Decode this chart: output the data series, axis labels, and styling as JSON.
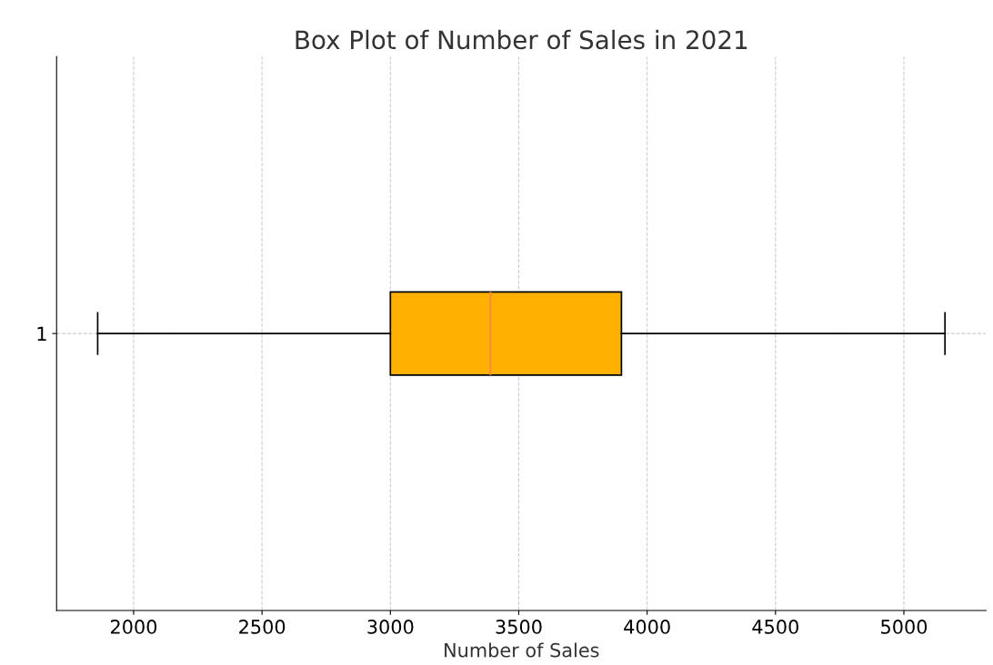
{
  "chart_data": {
    "type": "box",
    "title": "Box Plot of Number of Sales in 2021",
    "xlabel": "Number of Sales",
    "orientation": "horizontal",
    "categories": [
      "1"
    ],
    "boxes": [
      {
        "low": 1860,
        "q1": 3000,
        "median": 3390,
        "q3": 3900,
        "high": 5160
      }
    ],
    "color": "#ffb000",
    "xlim": [
      1700,
      5320
    ],
    "xticks": [
      2000,
      2500,
      3000,
      3500,
      4000,
      4500,
      5000
    ],
    "grid": true
  }
}
